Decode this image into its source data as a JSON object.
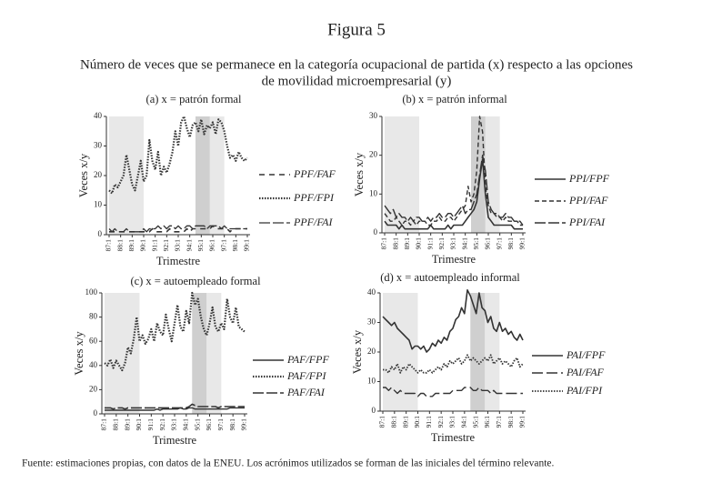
{
  "figure": {
    "title": "Figura 5",
    "subtitle": [
      "Número de veces que se permanece en la categoría ocupacional de partida (x) respecto a las opciones",
      "de movilidad microempresarial (y)"
    ],
    "source": "Fuente: estimaciones propias, con datos de la ENEU. Los acrónimos utilizados se forman de las iniciales del término relevante."
  },
  "chart_data": [
    {
      "type": "line",
      "title": "(a) x = patrón formal",
      "x_label": "Trimestre",
      "y_label": "Veces x/y",
      "legend": "right",
      "categories": [
        "87:1",
        null,
        null,
        null,
        "88:1",
        null,
        null,
        null,
        "89:1",
        null,
        null,
        null,
        "90:1",
        null,
        null,
        null,
        "91:1",
        null,
        null,
        null,
        "92:1",
        null,
        null,
        null,
        "93:1",
        null,
        null,
        null,
        "94:1",
        null,
        null,
        null,
        "95:1",
        null,
        null,
        null,
        "96:1",
        null,
        null,
        null,
        "97:1",
        null,
        null,
        null,
        "98:1",
        null,
        null,
        null,
        "99:1"
      ],
      "ylim": [
        0,
        40
      ],
      "yticks": [
        0,
        10,
        20,
        30,
        40
      ],
      "spans": [
        {
          "start": 0,
          "end": 12,
          "color": "#e8e8e8"
        },
        {
          "start": 30,
          "end": 35,
          "color": "#cfcfcf"
        },
        {
          "start": 35,
          "end": 40,
          "color": "#e8e8e8"
        }
      ],
      "series": [
        {
          "name": "PPF/FAF",
          "color": "#333333",
          "dash": "6,5",
          "width": 1.6,
          "values": [
            1,
            1,
            1,
            1,
            1,
            1,
            1,
            1,
            1,
            1,
            1,
            1,
            1,
            1,
            1,
            2,
            1,
            1,
            1,
            1,
            1,
            2,
            1,
            1,
            1,
            1,
            1,
            2,
            1,
            2,
            2,
            2,
            2,
            2,
            2,
            2,
            3,
            2,
            2,
            2,
            2,
            2,
            1,
            2,
            2,
            2,
            2,
            2,
            2
          ]
        },
        {
          "name": "PPF/FPI",
          "color": "#333333",
          "dash": "1.5,1.5",
          "width": 2.2,
          "values": [
            15,
            14,
            17,
            16,
            18,
            20,
            27,
            22,
            17,
            15,
            20,
            25,
            18,
            20,
            32,
            25,
            22,
            28,
            20,
            23,
            21,
            24,
            28,
            35,
            30,
            38,
            40,
            36,
            33,
            37,
            38,
            35,
            39,
            34,
            37,
            36,
            38,
            34,
            39,
            38,
            35,
            30,
            26,
            27,
            25,
            28,
            26,
            25,
            26
          ]
        },
        {
          "name": "PPF/FAI",
          "color": "#333333",
          "dash": "12,3",
          "width": 1.3,
          "values": [
            2,
            1,
            2,
            1,
            1,
            1,
            2,
            1,
            1,
            1,
            1,
            1,
            2,
            1,
            2,
            2,
            2,
            3,
            2,
            3,
            2,
            3,
            3,
            2,
            3,
            2,
            2,
            3,
            3,
            2,
            3,
            3,
            3,
            3,
            2,
            3,
            3,
            3,
            3,
            2,
            3,
            2,
            2,
            2,
            2,
            2,
            2,
            2,
            2
          ]
        }
      ]
    },
    {
      "type": "line",
      "title": "(b) x = patrón informal",
      "x_label": "Trimestre",
      "y_label": "Veces x/y",
      "legend": "right",
      "categories": [
        "87:1",
        null,
        null,
        null,
        "88:1",
        null,
        null,
        null,
        "89:1",
        null,
        null,
        null,
        "90:1",
        null,
        null,
        null,
        "91:1",
        null,
        null,
        null,
        "92:1",
        null,
        null,
        null,
        "93:1",
        null,
        null,
        null,
        "94:1",
        null,
        null,
        null,
        "95:1",
        null,
        null,
        null,
        "96:1",
        null,
        null,
        null,
        "97:1",
        null,
        null,
        null,
        "98:1",
        null,
        null,
        null,
        "99:1"
      ],
      "ylim": [
        0,
        30
      ],
      "yticks": [
        0,
        10,
        20,
        30
      ],
      "spans": [
        {
          "start": 0,
          "end": 12,
          "color": "#e8e8e8"
        },
        {
          "start": 30,
          "end": 35,
          "color": "#cfcfcf"
        },
        {
          "start": 35,
          "end": 40,
          "color": "#e8e8e8"
        }
      ],
      "series": [
        {
          "name": "PPI/FPF",
          "color": "#333333",
          "dash": "none",
          "width": 1.6,
          "values": [
            3,
            2,
            2,
            2,
            2,
            1,
            2,
            1,
            1,
            1,
            1,
            1,
            1,
            1,
            1,
            1,
            2,
            1,
            1,
            1,
            1,
            1,
            2,
            1,
            2,
            2,
            2,
            2,
            3,
            4,
            5,
            6,
            8,
            14,
            19,
            10,
            4,
            3,
            2,
            2,
            2,
            2,
            2,
            2,
            2,
            1,
            1,
            1,
            1
          ]
        },
        {
          "name": "PPI/FAF",
          "color": "#333333",
          "dash": "5,3",
          "width": 1.4,
          "values": [
            5,
            4,
            3,
            3,
            4,
            3,
            2,
            3,
            3,
            2,
            3,
            2,
            3,
            3,
            3,
            2,
            2,
            3,
            3,
            4,
            3,
            3,
            4,
            4,
            3,
            4,
            5,
            6,
            7,
            12,
            8,
            10,
            16,
            30,
            26,
            12,
            7,
            5,
            5,
            4,
            4,
            3,
            4,
            3,
            3,
            3,
            3,
            2,
            2
          ]
        },
        {
          "name": "PPI/FAI",
          "color": "#333333",
          "dash": "12,3",
          "width": 1.4,
          "values": [
            7,
            6,
            5,
            6,
            4,
            5,
            4,
            4,
            3,
            4,
            3,
            4,
            4,
            3,
            3,
            4,
            3,
            4,
            4,
            5,
            4,
            4,
            5,
            5,
            4,
            5,
            6,
            7,
            5,
            6,
            6,
            8,
            10,
            15,
            20,
            16,
            8,
            6,
            5,
            5,
            4,
            4,
            5,
            4,
            4,
            3,
            3,
            3,
            2
          ]
        }
      ]
    },
    {
      "type": "line",
      "title": "(c) x = autoempleado formal",
      "x_label": "Trimestre",
      "y_label": "Veces x/y",
      "legend": "right",
      "categories": [
        "87:1",
        null,
        null,
        null,
        "88:1",
        null,
        null,
        null,
        "89:1",
        null,
        null,
        null,
        "90:1",
        null,
        null,
        null,
        "91:1",
        null,
        null,
        null,
        "92:1",
        null,
        null,
        null,
        "93:1",
        null,
        null,
        null,
        "94:1",
        null,
        null,
        null,
        "95:1",
        null,
        null,
        null,
        "96:1",
        null,
        null,
        null,
        "97:1",
        null,
        null,
        null,
        "98:1",
        null,
        null,
        null,
        "99:1"
      ],
      "ylim": [
        0,
        100
      ],
      "yticks": [
        0,
        20,
        40,
        60,
        80,
        100
      ],
      "spans": [
        {
          "start": 0,
          "end": 12,
          "color": "#e8e8e8"
        },
        {
          "start": 30,
          "end": 35,
          "color": "#cfcfcf"
        },
        {
          "start": 35,
          "end": 40,
          "color": "#e8e8e8"
        }
      ],
      "series": [
        {
          "name": "PAF/FPF",
          "color": "#333333",
          "dash": "none",
          "width": 1.4,
          "values": [
            3,
            3,
            3,
            3,
            3,
            3,
            3,
            3,
            3,
            3,
            3,
            3,
            3,
            3,
            3,
            3,
            3,
            3,
            4,
            3,
            4,
            4,
            4,
            4,
            4,
            4,
            5,
            4,
            4,
            5,
            5,
            4,
            4,
            4,
            4,
            4,
            4,
            4,
            4,
            4,
            4,
            4,
            4,
            5,
            5,
            5,
            5,
            5,
            5
          ]
        },
        {
          "name": "PAF/FPI",
          "color": "#333333",
          "dash": "1.5,1.5",
          "width": 2.2,
          "values": [
            42,
            40,
            45,
            38,
            44,
            40,
            36,
            42,
            55,
            50,
            62,
            80,
            60,
            65,
            58,
            62,
            70,
            60,
            75,
            68,
            65,
            82,
            70,
            60,
            75,
            90,
            72,
            68,
            85,
            75,
            100,
            90,
            95,
            80,
            70,
            65,
            75,
            88,
            72,
            68,
            75,
            70,
            95,
            80,
            75,
            88,
            72,
            70,
            68
          ]
        },
        {
          "name": "PAF/FAI",
          "color": "#333333",
          "dash": "12,3",
          "width": 1.6,
          "values": [
            5,
            5,
            5,
            4,
            5,
            5,
            5,
            4,
            5,
            5,
            5,
            5,
            5,
            5,
            5,
            5,
            5,
            5,
            5,
            5,
            5,
            5,
            5,
            5,
            5,
            5,
            5,
            5,
            5,
            6,
            8,
            7,
            6,
            6,
            6,
            6,
            6,
            6,
            6,
            5,
            6,
            6,
            6,
            6,
            6,
            6,
            6,
            6,
            6
          ]
        }
      ]
    },
    {
      "type": "line",
      "title": "(d) x = autoempleado informal",
      "x_label": "Trimestre",
      "y_label": "Veces x/y",
      "legend": "right",
      "categories": [
        "87:1",
        null,
        null,
        null,
        "88:1",
        null,
        null,
        null,
        "89:1",
        null,
        null,
        null,
        "90:1",
        null,
        null,
        null,
        "91:1",
        null,
        null,
        null,
        "92:1",
        null,
        null,
        null,
        "93:1",
        null,
        null,
        null,
        "94:1",
        null,
        null,
        null,
        "95:1",
        null,
        null,
        null,
        "96:1",
        null,
        null,
        null,
        "97:1",
        null,
        null,
        null,
        "98:1",
        null,
        null,
        null,
        "99:1"
      ],
      "ylim": [
        0,
        40
      ],
      "yticks": [
        0,
        10,
        20,
        30,
        40
      ],
      "spans": [
        {
          "start": 0,
          "end": 12,
          "color": "#e8e8e8"
        },
        {
          "start": 30,
          "end": 35,
          "color": "#cfcfcf"
        },
        {
          "start": 35,
          "end": 40,
          "color": "#e8e8e8"
        }
      ],
      "series": [
        {
          "name": "PAI/FPF",
          "color": "#333333",
          "dash": "none",
          "width": 1.6,
          "values": [
            32,
            31,
            30,
            29,
            30,
            28,
            27,
            26,
            25,
            24,
            21,
            22,
            22,
            21,
            22,
            20,
            21,
            23,
            22,
            24,
            23,
            25,
            24,
            27,
            28,
            31,
            32,
            35,
            33,
            41,
            39,
            36,
            33,
            40,
            35,
            34,
            30,
            32,
            28,
            27,
            30,
            27,
            28,
            26,
            27,
            25,
            24,
            26,
            24
          ]
        },
        {
          "name": "PAI/FAF",
          "color": "#333333",
          "dash": "12,4",
          "width": 1.4,
          "values": [
            8,
            8,
            7,
            8,
            7,
            6,
            7,
            6,
            6,
            6,
            6,
            6,
            5,
            6,
            6,
            5,
            5,
            5,
            6,
            6,
            6,
            6,
            6,
            6,
            7,
            7,
            7,
            7,
            8,
            8,
            8,
            7,
            7,
            8,
            7,
            7,
            7,
            6,
            7,
            6,
            6,
            6,
            6,
            6,
            6,
            6,
            6,
            6,
            6
          ]
        },
        {
          "name": "PAI/FPI",
          "color": "#333333",
          "dash": "1.5,1.5",
          "width": 1.8,
          "values": [
            14,
            14,
            13,
            15,
            14,
            16,
            13,
            15,
            14,
            16,
            15,
            14,
            13,
            14,
            13,
            13,
            14,
            13,
            14,
            15,
            14,
            16,
            15,
            17,
            16,
            17,
            18,
            16,
            17,
            19,
            17,
            18,
            17,
            16,
            17,
            18,
            17,
            19,
            16,
            17,
            18,
            16,
            17,
            16,
            15,
            17,
            18,
            15,
            16
          ]
        }
      ]
    }
  ]
}
